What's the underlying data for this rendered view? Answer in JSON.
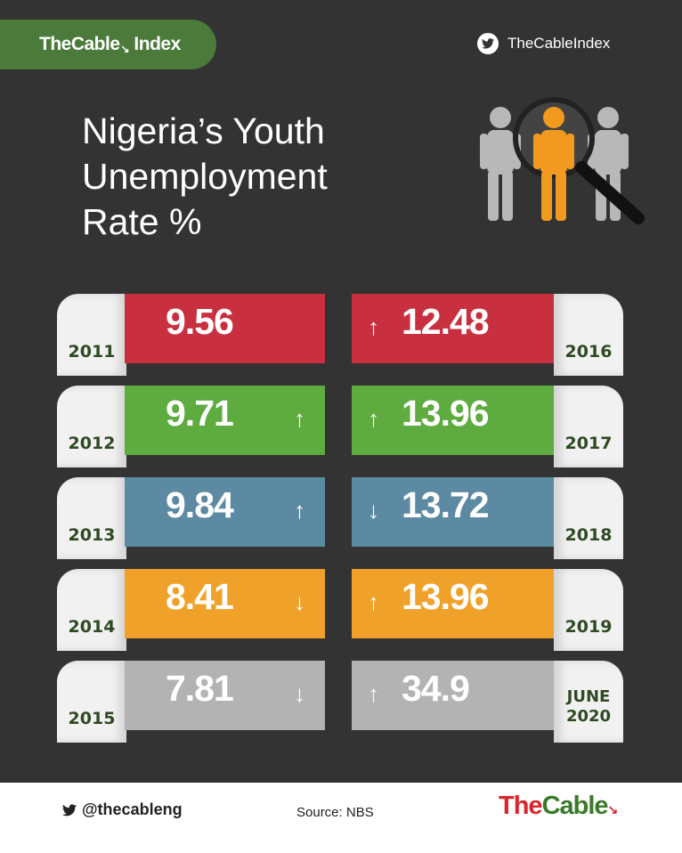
{
  "brand": {
    "badge_prefix": "TheCable",
    "badge_suffix": " Index",
    "twitter_handle_top": "TheCableIndex"
  },
  "title_lines": [
    "Nigeria’s Youth",
    "Unemployment",
    "Rate %"
  ],
  "colors": {
    "background": "#333333",
    "badge_green": "#4b7a3a",
    "year_text": "#2e4a22",
    "logo_red": "#d9262e",
    "logo_green": "#3a7a2a"
  },
  "rows": [
    {
      "color": "#c8303f",
      "left": {
        "year": "2011",
        "value": "9.56",
        "arrow": ""
      },
      "right": {
        "year": "2016",
        "value": "12.48",
        "arrow": "↑"
      }
    },
    {
      "color": "#5eab3f",
      "left": {
        "year": "2012",
        "value": "9.71",
        "arrow": "↑"
      },
      "right": {
        "year": "2017",
        "value": "13.96",
        "arrow": "↑"
      }
    },
    {
      "color": "#5d8aa3",
      "left": {
        "year": "2013",
        "value": "9.84",
        "arrow": "↑"
      },
      "right": {
        "year": "2018",
        "value": "13.72",
        "arrow": "↓"
      }
    },
    {
      "color": "#f0a12a",
      "left": {
        "year": "2014",
        "value": "8.41",
        "arrow": "↓"
      },
      "right": {
        "year": "2019",
        "value": "13.96",
        "arrow": "↑"
      }
    },
    {
      "color": "#b3b3b3",
      "left": {
        "year": "2015",
        "value": "7.81",
        "arrow": "↓"
      },
      "right": {
        "year_line1": "JUNE",
        "year_line2": "2020",
        "value": "34.9",
        "arrow": "↑"
      }
    }
  ],
  "footer": {
    "twitter_handle": "@thecableng",
    "source": "Source: NBS",
    "logo_part1": "The",
    "logo_part2": "Cable"
  },
  "icons": [
    "twitter-icon",
    "people-magnifier-illustration",
    "cable-arrow-icon"
  ]
}
